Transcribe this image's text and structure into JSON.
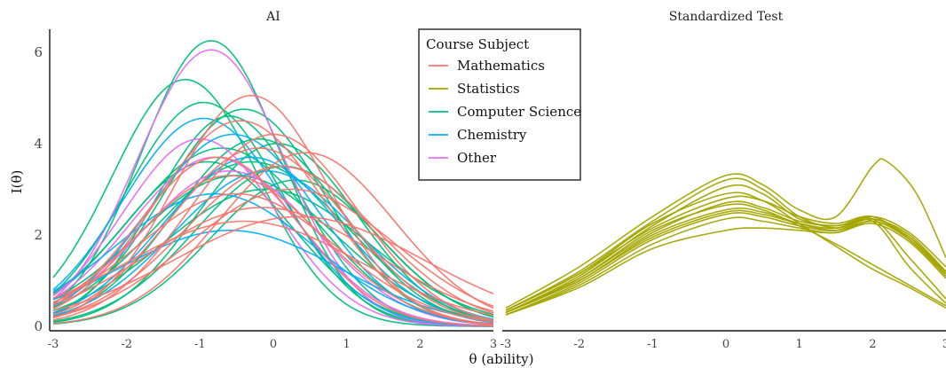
{
  "chart_data": {
    "type": "line",
    "xlabel": "θ (ability)",
    "ylabel": "I(θ)",
    "xlim": [
      -3,
      3
    ],
    "ylim": [
      0,
      6.5
    ],
    "grid": false,
    "legend": {
      "title": "Course Subject",
      "placement": "top-center of left panel",
      "entries": [
        {
          "name": "Mathematics",
          "color": "#F8766D"
        },
        {
          "name": "Statistics",
          "color": "#A3A500"
        },
        {
          "name": "Computer Science",
          "color": "#00BF7D"
        },
        {
          "name": "Chemistry",
          "color": "#00B0F6"
        },
        {
          "name": "Other",
          "color": "#E76BF3"
        }
      ]
    },
    "panels": [
      {
        "title": "AI",
        "x_ticks": [
          "-3",
          "-2",
          "-1",
          "0",
          "1",
          "2",
          "3"
        ],
        "y_ticks": [
          "0",
          "2",
          "4",
          "6"
        ],
        "series": [
          {
            "group": "Computer Science",
            "peak_x": -0.85,
            "peak_y": 6.25,
            "width": 0.95
          },
          {
            "group": "Computer Science",
            "peak_x": -1.2,
            "peak_y": 5.4,
            "width": 1.0
          },
          {
            "group": "Computer Science",
            "peak_x": -0.95,
            "peak_y": 4.9,
            "width": 1.05
          },
          {
            "group": "Computer Science",
            "peak_x": -0.6,
            "peak_y": 4.6,
            "width": 1.0
          },
          {
            "group": "Computer Science",
            "peak_x": -0.4,
            "peak_y": 4.75,
            "width": 1.1
          },
          {
            "group": "Computer Science",
            "peak_x": -0.2,
            "peak_y": 4.1,
            "width": 1.15
          },
          {
            "group": "Computer Science",
            "peak_x": 0.05,
            "peak_y": 4.0,
            "width": 1.1
          },
          {
            "group": "Computer Science",
            "peak_x": -0.7,
            "peak_y": 3.9,
            "width": 1.25
          },
          {
            "group": "Computer Science",
            "peak_x": -0.3,
            "peak_y": 3.6,
            "width": 1.3
          },
          {
            "group": "Computer Science",
            "peak_x": 0.15,
            "peak_y": 3.5,
            "width": 1.2
          },
          {
            "group": "Computer Science",
            "peak_x": -0.5,
            "peak_y": 3.3,
            "width": 1.35
          },
          {
            "group": "Computer Science",
            "peak_x": -0.1,
            "peak_y": 3.0,
            "width": 1.4
          },
          {
            "group": "Computer Science",
            "peak_x": -0.9,
            "peak_y": 3.6,
            "width": 1.15
          },
          {
            "group": "Computer Science",
            "peak_x": 0.3,
            "peak_y": 3.2,
            "width": 1.15
          },
          {
            "group": "Other",
            "peak_x": -0.85,
            "peak_y": 6.05,
            "width": 1.0
          },
          {
            "group": "Other",
            "peak_x": -1.0,
            "peak_y": 4.1,
            "width": 1.05
          },
          {
            "group": "Other",
            "peak_x": -0.8,
            "peak_y": 3.7,
            "width": 1.15
          },
          {
            "group": "Other",
            "peak_x": -0.6,
            "peak_y": 3.4,
            "width": 1.2
          },
          {
            "group": "Chemistry",
            "peak_x": -0.95,
            "peak_y": 4.55,
            "width": 1.1
          },
          {
            "group": "Chemistry",
            "peak_x": -0.55,
            "peak_y": 4.2,
            "width": 1.15
          },
          {
            "group": "Chemistry",
            "peak_x": -0.3,
            "peak_y": 3.7,
            "width": 1.2
          },
          {
            "group": "Chemistry",
            "peak_x": -0.1,
            "peak_y": 3.4,
            "width": 1.25
          },
          {
            "group": "Chemistry",
            "peak_x": -0.6,
            "peak_y": 2.1,
            "width": 1.5
          },
          {
            "group": "Chemistry",
            "peak_x": -0.8,
            "peak_y": 2.9,
            "width": 1.35
          },
          {
            "group": "Mathematics",
            "peak_x": -0.3,
            "peak_y": 5.05,
            "width": 1.05
          },
          {
            "group": "Mathematics",
            "peak_x": -0.45,
            "peak_y": 4.5,
            "width": 1.15
          },
          {
            "group": "Mathematics",
            "peak_x": 0.45,
            "peak_y": 3.8,
            "width": 1.2
          },
          {
            "group": "Mathematics",
            "peak_x": -0.2,
            "peak_y": 3.9,
            "width": 1.2
          },
          {
            "group": "Mathematics",
            "peak_x": 0.1,
            "peak_y": 3.5,
            "width": 1.3
          },
          {
            "group": "Mathematics",
            "peak_x": -0.6,
            "peak_y": 3.3,
            "width": 1.25
          },
          {
            "group": "Mathematics",
            "peak_x": 0.25,
            "peak_y": 3.0,
            "width": 1.4
          },
          {
            "group": "Mathematics",
            "peak_x": -0.15,
            "peak_y": 2.6,
            "width": 1.55
          },
          {
            "group": "Mathematics",
            "peak_x": -0.4,
            "peak_y": 2.3,
            "width": 1.6
          },
          {
            "group": "Mathematics",
            "peak_x": -0.75,
            "peak_y": 3.7,
            "width": 1.1
          },
          {
            "group": "Mathematics",
            "peak_x": 0.0,
            "peak_y": 4.2,
            "width": 1.15
          },
          {
            "group": "Mathematics",
            "peak_x": -0.5,
            "peak_y": 2.9,
            "width": 1.35
          },
          {
            "group": "Mathematics",
            "peak_x": 0.35,
            "peak_y": 2.4,
            "width": 1.7
          }
        ]
      },
      {
        "title": "Standardized Test",
        "x_ticks": [
          "-3",
          "-2",
          "-1",
          "0",
          "1",
          "2",
          "3"
        ],
        "series": [
          {
            "group": "Statistics",
            "points": [
              [
                -3,
                0.4
              ],
              [
                -2,
                1.3
              ],
              [
                -1,
                2.4
              ],
              [
                0,
                3.3
              ],
              [
                0.5,
                3.1
              ],
              [
                1,
                2.55
              ],
              [
                1.5,
                2.4
              ],
              [
                2,
                3.5
              ],
              [
                2.2,
                3.6
              ],
              [
                2.6,
                2.9
              ],
              [
                3,
                1.5
              ]
            ]
          },
          {
            "group": "Statistics",
            "points": [
              [
                -3,
                0.35
              ],
              [
                -2,
                1.2
              ],
              [
                -1,
                2.3
              ],
              [
                0,
                3.2
              ],
              [
                0.5,
                3.0
              ],
              [
                1,
                2.4
              ],
              [
                1.5,
                2.15
              ],
              [
                2,
                2.3
              ],
              [
                2.5,
                1.3
              ],
              [
                3,
                0.5
              ]
            ]
          },
          {
            "group": "Statistics",
            "points": [
              [
                -3,
                0.3
              ],
              [
                -2,
                1.1
              ],
              [
                -1,
                2.2
              ],
              [
                0,
                3.05
              ],
              [
                0.5,
                2.9
              ],
              [
                1,
                2.35
              ],
              [
                1.5,
                2.2
              ],
              [
                2,
                2.35
              ],
              [
                2.5,
                1.5
              ],
              [
                3,
                0.6
              ]
            ]
          },
          {
            "group": "Statistics",
            "points": [
              [
                -3,
                0.35
              ],
              [
                -2,
                1.15
              ],
              [
                -1,
                2.15
              ],
              [
                0,
                2.8
              ],
              [
                0.5,
                2.75
              ],
              [
                1,
                2.4
              ],
              [
                1.5,
                2.25
              ],
              [
                2,
                2.4
              ],
              [
                2.5,
                1.9
              ],
              [
                3,
                1.1
              ]
            ]
          },
          {
            "group": "Statistics",
            "points": [
              [
                -3,
                0.3
              ],
              [
                -2,
                1.05
              ],
              [
                -1,
                2.05
              ],
              [
                0,
                2.7
              ],
              [
                0.5,
                2.6
              ],
              [
                1,
                2.3
              ],
              [
                1.5,
                2.2
              ],
              [
                2,
                2.35
              ],
              [
                2.5,
                2.0
              ],
              [
                3,
                1.2
              ]
            ]
          },
          {
            "group": "Statistics",
            "points": [
              [
                -3,
                0.3
              ],
              [
                -2,
                1.0
              ],
              [
                -1,
                2.0
              ],
              [
                0,
                2.55
              ],
              [
                0.5,
                2.5
              ],
              [
                1,
                2.25
              ],
              [
                1.5,
                2.1
              ],
              [
                2,
                2.3
              ],
              [
                2.5,
                1.95
              ],
              [
                3,
                1.15
              ]
            ]
          },
          {
            "group": "Statistics",
            "points": [
              [
                -3,
                0.25
              ],
              [
                -2,
                0.95
              ],
              [
                -1,
                1.9
              ],
              [
                0,
                2.45
              ],
              [
                0.5,
                2.4
              ],
              [
                1,
                2.2
              ],
              [
                1.5,
                2.1
              ],
              [
                2,
                2.35
              ],
              [
                2.5,
                1.95
              ],
              [
                3,
                1.2
              ]
            ]
          },
          {
            "group": "Statistics",
            "points": [
              [
                -3,
                0.25
              ],
              [
                -2,
                0.9
              ],
              [
                -1,
                1.8
              ],
              [
                0,
                2.35
              ],
              [
                0.5,
                2.3
              ],
              [
                1,
                2.15
              ],
              [
                1.5,
                2.05
              ],
              [
                2,
                2.3
              ],
              [
                2.5,
                1.9
              ],
              [
                3,
                1.15
              ]
            ]
          },
          {
            "group": "Statistics",
            "points": [
              [
                -3,
                0.3
              ],
              [
                -2,
                1.0
              ],
              [
                -1,
                1.95
              ],
              [
                0,
                2.5
              ],
              [
                0.5,
                2.45
              ],
              [
                1,
                2.25
              ],
              [
                1.5,
                2.15
              ],
              [
                2,
                2.4
              ],
              [
                2.5,
                2.05
              ],
              [
                3,
                1.3
              ]
            ]
          },
          {
            "group": "Statistics",
            "points": [
              [
                -3,
                0.25
              ],
              [
                -2,
                0.85
              ],
              [
                -1,
                1.7
              ],
              [
                0,
                2.1
              ],
              [
                0.5,
                2.15
              ],
              [
                1,
                2.1
              ],
              [
                1.5,
                2.05
              ],
              [
                2,
                2.25
              ],
              [
                2.5,
                1.85
              ],
              [
                3,
                1.05
              ]
            ]
          },
          {
            "group": "Statistics",
            "points": [
              [
                -3,
                0.3
              ],
              [
                -2,
                1.05
              ],
              [
                -1,
                2.1
              ],
              [
                0,
                2.65
              ],
              [
                0.5,
                2.55
              ],
              [
                1,
                2.2
              ],
              [
                1.5,
                1.8
              ],
              [
                2,
                1.35
              ],
              [
                2.5,
                0.9
              ],
              [
                3,
                0.45
              ]
            ]
          },
          {
            "group": "Statistics",
            "points": [
              [
                -3,
                0.35
              ],
              [
                -2,
                1.15
              ],
              [
                -1,
                2.25
              ],
              [
                0,
                2.9
              ],
              [
                0.5,
                2.75
              ],
              [
                1,
                2.25
              ],
              [
                1.5,
                1.75
              ],
              [
                2,
                1.25
              ],
              [
                2.5,
                0.85
              ],
              [
                3,
                0.4
              ]
            ]
          }
        ]
      }
    ]
  }
}
